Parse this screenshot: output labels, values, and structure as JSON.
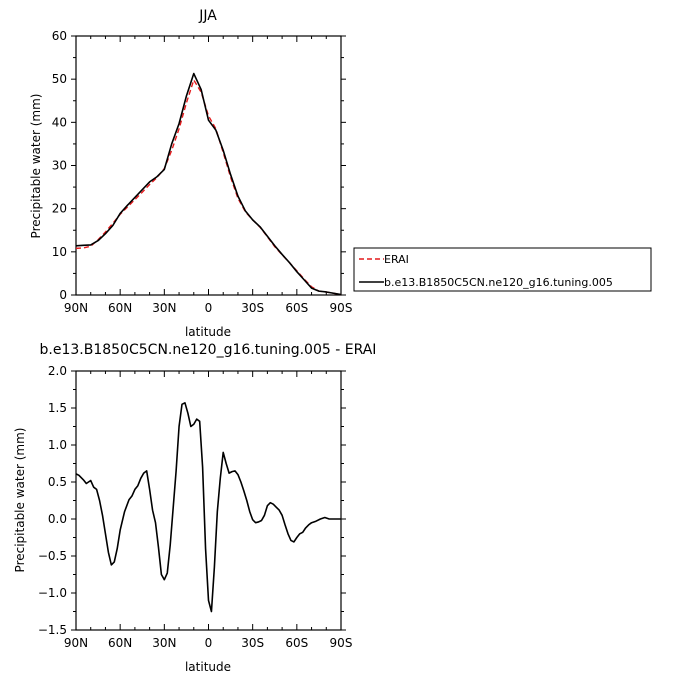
{
  "chart_data": [
    {
      "type": "line",
      "title": "JJA",
      "xlabel": "latitude",
      "ylabel": "Precipitable water (mm)",
      "xlim": [
        90,
        -90
      ],
      "ylim": [
        0,
        60
      ],
      "x_ticks": [
        90,
        60,
        30,
        0,
        -30,
        -60,
        -90
      ],
      "x_tick_labels": [
        "90N",
        "60N",
        "30N",
        "0",
        "30S",
        "60S",
        "90S"
      ],
      "y_ticks": [
        0,
        10,
        20,
        30,
        40,
        50,
        60
      ],
      "y_tick_labels": [
        "0",
        "10",
        "20",
        "30",
        "40",
        "50",
        "60"
      ],
      "legend_position": "right",
      "series": [
        {
          "name": "ERAI",
          "color": "#e41a1c",
          "dash": "dashed",
          "x": [
            90,
            85,
            80,
            75,
            70,
            65,
            60,
            55,
            50,
            45,
            40,
            35,
            30,
            25,
            20,
            15,
            10,
            5,
            0,
            -5,
            -10,
            -15,
            -20,
            -25,
            -30,
            -35,
            -40,
            -45,
            -50,
            -55,
            -60,
            -65,
            -70,
            -75,
            -80,
            -85,
            -90
          ],
          "values": [
            10.8,
            10.9,
            11.3,
            12.8,
            14.6,
            16.6,
            18.7,
            20.4,
            22.1,
            23.8,
            25.6,
            27.2,
            29.3,
            33.5,
            38.5,
            44.5,
            49.8,
            47.0,
            41.5,
            38.5,
            33.0,
            27.3,
            22.4,
            19.3,
            17.4,
            15.7,
            13.5,
            11.2,
            9.3,
            7.5,
            5.6,
            3.7,
            1.9,
            0.9,
            0.7,
            0.4,
            0.1
          ]
        },
        {
          "name": "b.e13.B1850C5CN.ne120_g16.tuning.005",
          "color": "#000000",
          "dash": "solid",
          "x": [
            90,
            85,
            80,
            75,
            70,
            65,
            60,
            55,
            50,
            45,
            40,
            35,
            30,
            25,
            20,
            15,
            10,
            5,
            0,
            -5,
            -10,
            -15,
            -20,
            -25,
            -30,
            -35,
            -40,
            -45,
            -50,
            -55,
            -60,
            -65,
            -70,
            -75,
            -80,
            -85,
            -90
          ],
          "values": [
            11.4,
            11.5,
            11.6,
            12.6,
            14.2,
            16.1,
            18.9,
            20.8,
            22.6,
            24.4,
            26.2,
            27.4,
            29.1,
            35.0,
            39.7,
            46.1,
            51.3,
            47.6,
            40.5,
            38.2,
            33.5,
            27.9,
            22.9,
            19.5,
            17.4,
            15.8,
            13.6,
            11.4,
            9.4,
            7.5,
            5.4,
            3.5,
            1.6,
            0.9,
            0.7,
            0.4,
            0.1
          ]
        }
      ]
    },
    {
      "type": "line",
      "title": "b.e13.B1850C5CN.ne120_g16.tuning.005 - ERAI",
      "xlabel": "latitude",
      "ylabel": "Precipitable water (mm)",
      "xlim": [
        90,
        -90
      ],
      "ylim": [
        -1.5,
        2.0
      ],
      "x_ticks": [
        90,
        60,
        30,
        0,
        -30,
        -60,
        -90
      ],
      "x_tick_labels": [
        "90N",
        "60N",
        "30N",
        "0",
        "30S",
        "60S",
        "90S"
      ],
      "y_ticks": [
        -1.5,
        -1.0,
        -0.5,
        0.0,
        0.5,
        1.0,
        1.5,
        2.0
      ],
      "y_tick_labels": [
        "−1.5",
        "−1.0",
        "−0.5",
        "0.0",
        "0.5",
        "1.0",
        "1.5",
        "2.0"
      ],
      "series": [
        {
          "color": "#000000",
          "dash": "solid",
          "x": [
            90,
            88,
            85,
            83,
            80,
            78,
            76,
            74,
            72,
            70,
            68,
            66,
            64,
            62,
            60,
            57,
            54,
            52,
            50,
            48,
            46,
            44,
            42,
            40,
            38,
            36,
            34,
            32,
            30,
            28,
            26,
            24,
            22,
            20,
            18,
            16,
            14,
            12,
            10,
            8,
            6,
            4,
            2,
            0,
            -2,
            -4,
            -6,
            -8,
            -10,
            -12,
            -14,
            -16,
            -18,
            -20,
            -22,
            -24,
            -26,
            -28,
            -30,
            -32,
            -34,
            -36,
            -38,
            -40,
            -42,
            -44,
            -46,
            -48,
            -50,
            -52,
            -54,
            -56,
            -58,
            -60,
            -62,
            -64,
            -66,
            -68,
            -70,
            -73,
            -76,
            -79,
            -82,
            -85,
            -88,
            -90
          ],
          "values": [
            0.61,
            0.59,
            0.53,
            0.48,
            0.52,
            0.43,
            0.4,
            0.25,
            0.05,
            -0.2,
            -0.45,
            -0.62,
            -0.58,
            -0.4,
            -0.15,
            0.1,
            0.26,
            0.31,
            0.4,
            0.45,
            0.55,
            0.62,
            0.65,
            0.4,
            0.12,
            -0.05,
            -0.38,
            -0.75,
            -0.82,
            -0.73,
            -0.35,
            0.15,
            0.65,
            1.25,
            1.55,
            1.57,
            1.43,
            1.25,
            1.28,
            1.35,
            1.32,
            0.7,
            -0.4,
            -1.1,
            -1.25,
            -0.65,
            0.1,
            0.55,
            0.9,
            0.75,
            0.62,
            0.64,
            0.65,
            0.6,
            0.5,
            0.38,
            0.25,
            0.1,
            -0.01,
            -0.05,
            -0.04,
            -0.02,
            0.05,
            0.18,
            0.22,
            0.2,
            0.16,
            0.12,
            0.05,
            -0.08,
            -0.2,
            -0.29,
            -0.31,
            -0.25,
            -0.2,
            -0.18,
            -0.12,
            -0.08,
            -0.05,
            -0.03,
            0.0,
            0.02,
            0.0,
            0.0,
            0.0,
            0.0
          ]
        }
      ]
    }
  ]
}
